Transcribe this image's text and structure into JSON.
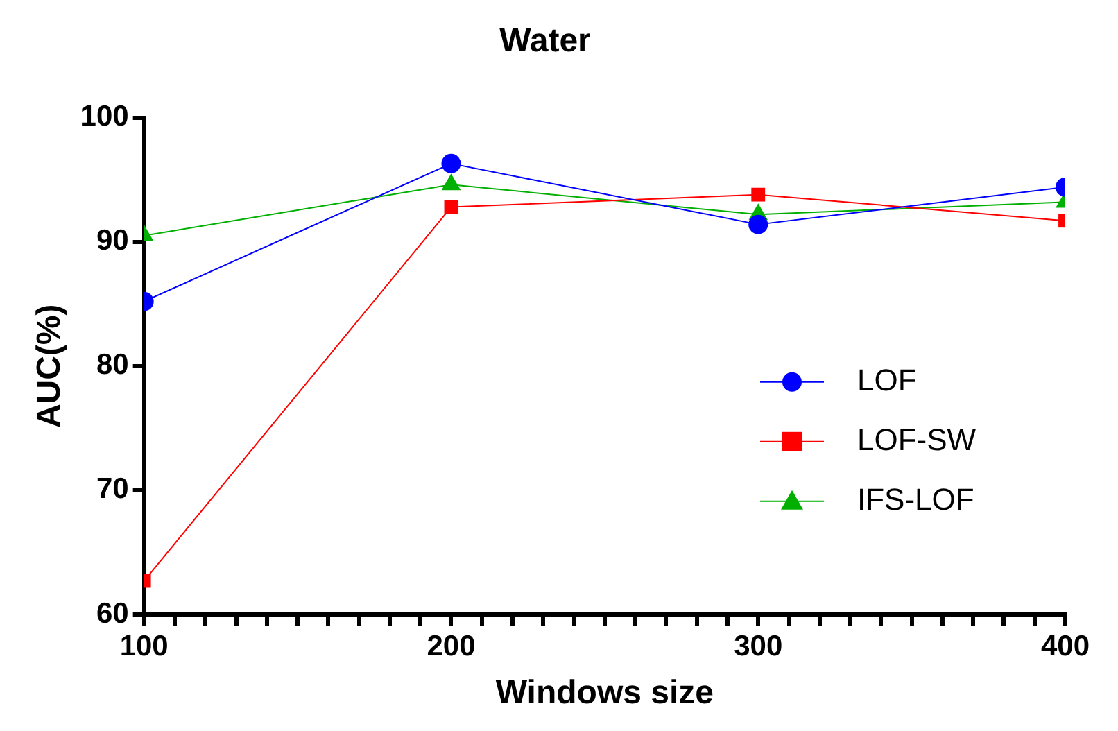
{
  "chart_data": {
    "type": "line",
    "title": "Water",
    "xlabel": "Windows size",
    "ylabel": "AUC(%)",
    "x": [
      100,
      200,
      300,
      400
    ],
    "series": [
      {
        "name": "LOF",
        "color": "#0000ff",
        "marker": "circle",
        "values": [
          85.2,
          96.3,
          91.4,
          94.4
        ]
      },
      {
        "name": "LOF-SW",
        "color": "#ff0000",
        "marker": "square",
        "values": [
          62.7,
          92.8,
          93.8,
          91.7
        ]
      },
      {
        "name": "IFS-LOF",
        "color": "#00b000",
        "marker": "triangle",
        "values": [
          90.5,
          94.6,
          92.2,
          93.2
        ]
      }
    ],
    "xlim": [
      100,
      400
    ],
    "xticks": [
      100,
      {
        "value": 110,
        "label": null
      },
      {
        "value": 120,
        "label": null
      },
      {
        "value": 130,
        "label": null
      },
      {
        "value": 140,
        "label": null
      },
      {
        "value": 150,
        "label": null
      },
      {
        "value": 160,
        "label": null
      },
      {
        "value": 170,
        "label": null
      },
      {
        "value": 180,
        "label": null
      },
      {
        "value": 190,
        "label": null
      },
      200,
      {
        "value": 210,
        "label": null
      },
      {
        "value": 220,
        "label": null
      },
      {
        "value": 230,
        "label": null
      },
      {
        "value": 240,
        "label": null
      },
      {
        "value": 250,
        "label": null
      },
      {
        "value": 260,
        "label": null
      },
      {
        "value": 270,
        "label": null
      },
      {
        "value": 280,
        "label": null
      },
      {
        "value": 290,
        "label": null
      },
      300,
      {
        "value": 310,
        "label": null
      },
      {
        "value": 320,
        "label": null
      },
      {
        "value": 330,
        "label": null
      },
      {
        "value": 340,
        "label": null
      },
      {
        "value": 350,
        "label": null
      },
      {
        "value": 360,
        "label": null
      },
      {
        "value": 370,
        "label": null
      },
      {
        "value": 380,
        "label": null
      },
      {
        "value": 390,
        "label": null
      },
      400
    ],
    "ylim": [
      60,
      100
    ],
    "yticks": [
      60,
      70,
      80,
      90,
      100
    ],
    "grid": false,
    "legend": "right",
    "line_style": "solid"
  }
}
